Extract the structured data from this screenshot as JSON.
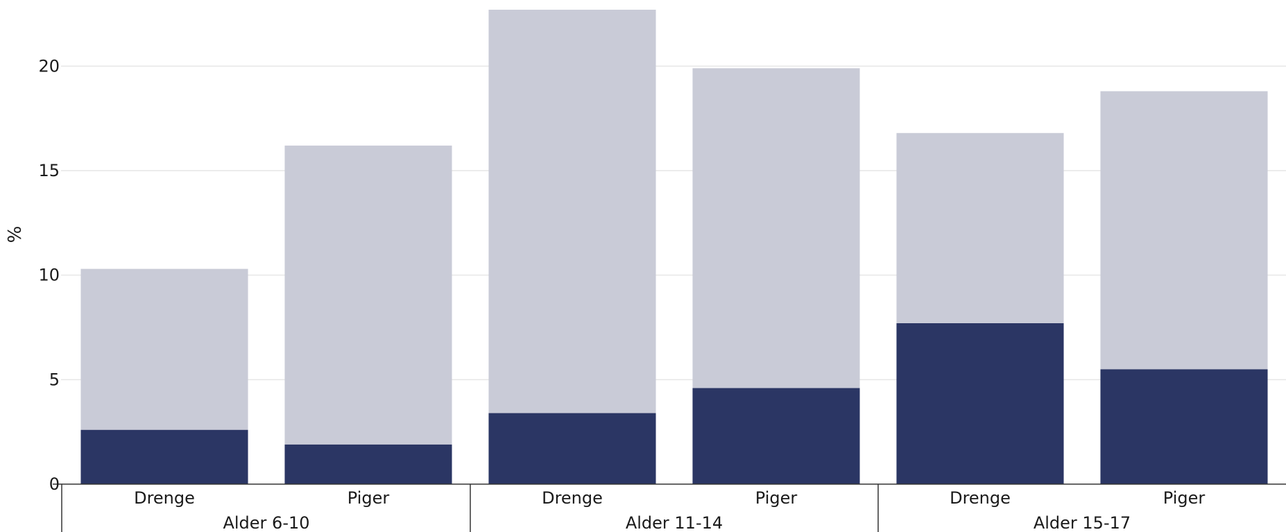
{
  "chart_data": {
    "type": "bar",
    "stacked": true,
    "xlabel": "",
    "ylabel": "%",
    "ylim": [
      0,
      22.7
    ],
    "yticks": [
      "0",
      "5",
      "10",
      "15",
      "20"
    ],
    "ytick_values": [
      0,
      5,
      10,
      15,
      20
    ],
    "grid": true,
    "groups": [
      "Alder 6-10",
      "Alder 11-14",
      "Alder 15-17"
    ],
    "categories": [
      "Drenge",
      "Piger",
      "Drenge",
      "Piger",
      "Drenge",
      "Piger"
    ],
    "category_group": [
      0,
      0,
      1,
      1,
      2,
      2
    ],
    "series": [
      {
        "values": [
          2.6,
          1.9,
          3.4,
          4.6,
          7.7,
          5.5
        ],
        "color": "#2b3664"
      },
      {
        "values": [
          7.7,
          14.3,
          19.3,
          15.3,
          9.1,
          13.3
        ],
        "color": "#c9cbd7"
      }
    ]
  }
}
